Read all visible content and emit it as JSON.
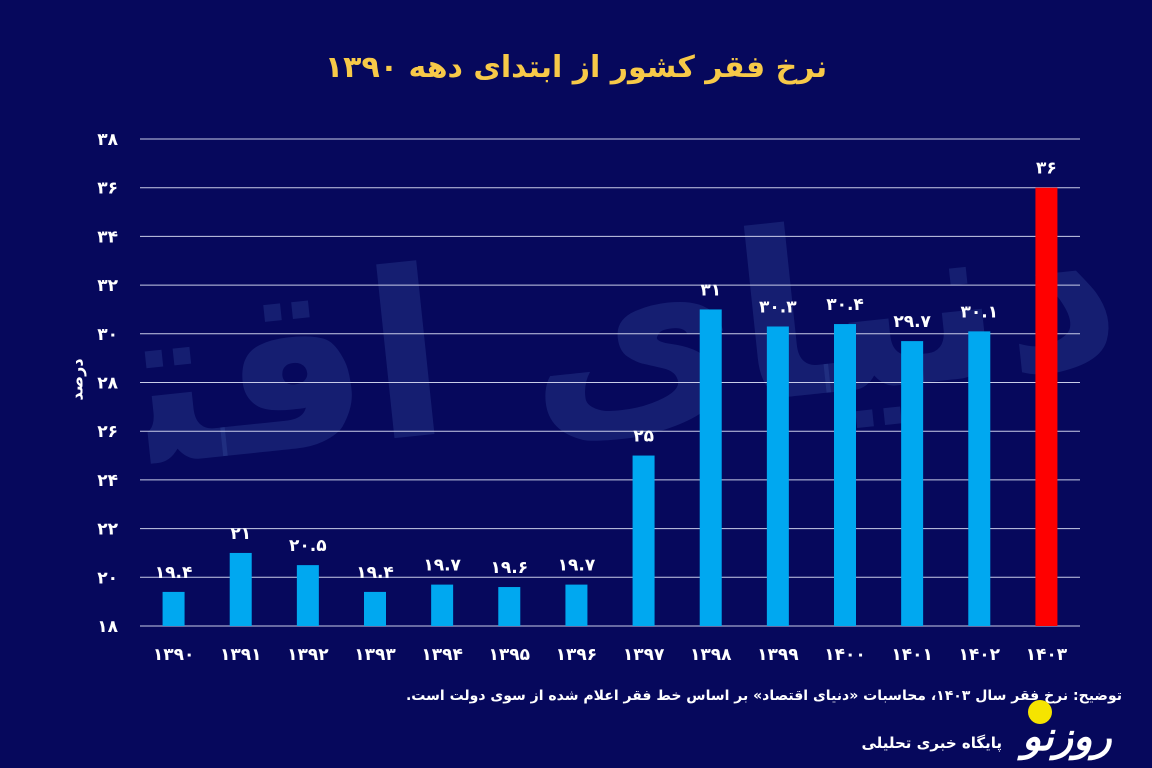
{
  "chart_data": {
    "type": "bar",
    "title": "نرخ فقر کشور از ابتدای دهه ۱۳۹۰",
    "ylabel": "درصد",
    "xlabel": "",
    "categories": [
      "۱۳۹۰",
      "۱۳۹۱",
      "۱۳۹۲",
      "۱۳۹۳",
      "۱۳۹۴",
      "۱۳۹۵",
      "۱۳۹۶",
      "۱۳۹۷",
      "۱۳۹۸",
      "۱۳۹۹",
      "۱۴۰۰",
      "۱۴۰۱",
      "۱۴۰۲",
      "۱۴۰۳"
    ],
    "values": [
      19.4,
      21,
      20.5,
      19.4,
      19.7,
      19.6,
      19.7,
      25,
      31,
      30.3,
      30.4,
      29.7,
      30.1,
      36
    ],
    "value_labels": [
      "۱۹.۴",
      "۲۱",
      "۲۰.۵",
      "۱۹.۴",
      "۱۹.۷",
      "۱۹.۶",
      "۱۹.۷",
      "۲۵",
      "۳۱",
      "۳۰.۳",
      "۳۰.۴",
      "۲۹.۷",
      "۳۰.۱",
      "۳۶"
    ],
    "ylim": [
      18,
      38
    ],
    "yticks": [
      18,
      20,
      22,
      24,
      26,
      28,
      30,
      32,
      34,
      36,
      38
    ],
    "ytick_labels": [
      "۱۸",
      "۲۰",
      "۲۲",
      "۲۴",
      "۲۶",
      "۲۸",
      "۳۰",
      "۳۲",
      "۳۴",
      "۳۶",
      "۳۸"
    ],
    "grid": true,
    "colors": {
      "default": "#00a8f0",
      "highlight": "#ff0000",
      "highlight_index": 13,
      "title": "#f7c948",
      "background": "#06085c"
    }
  },
  "footnote": "توضیح: نرخ فقر سال ۱۴۰۳، محاسبات «دنیای اقتصاد» بر اساس خط فقر اعلام شده از سوی دولت است.",
  "watermark": "دنیای اقتصاد",
  "logo": {
    "name": "روزنو",
    "tagline": "پایگاه خبری تحلیلی"
  }
}
